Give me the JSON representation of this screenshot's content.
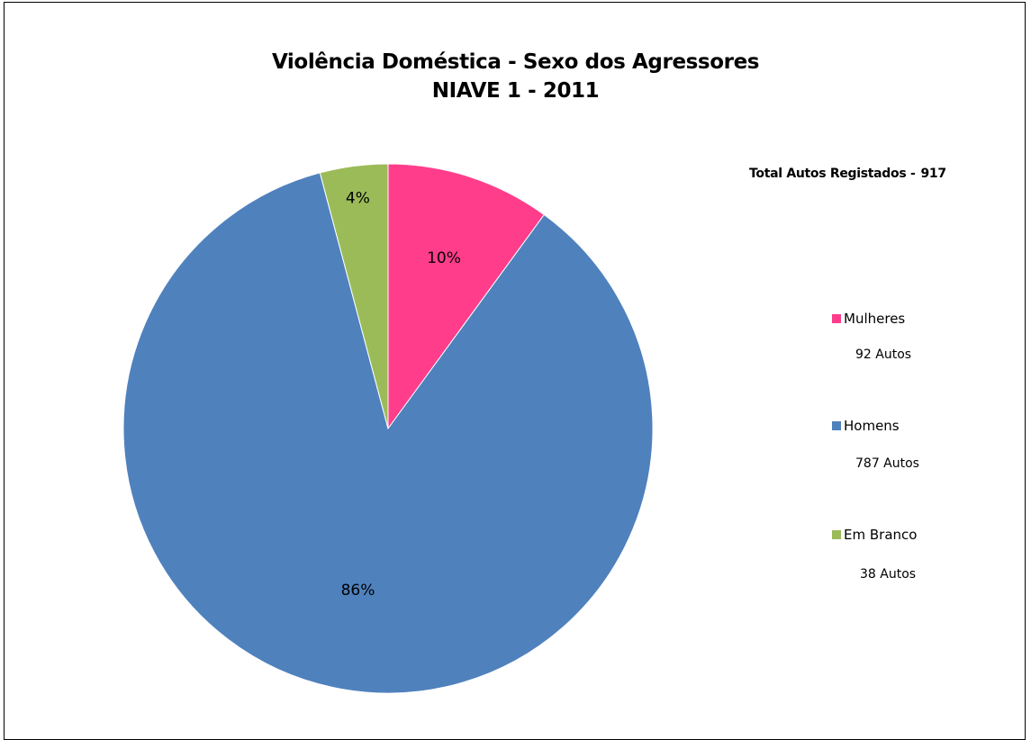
{
  "chart_data": {
    "type": "pie",
    "title": "Violência Doméstica  - Sexo dos Agressores",
    "subtitle": "NIAVE 1 - 2011",
    "total_label": "Total Autos Registados -",
    "total_value": "917",
    "slices": [
      {
        "name": "Mulheres",
        "value": 92,
        "percent_label": "10%",
        "count_label": "92 Autos",
        "color": "#FF3D8B"
      },
      {
        "name": "Homens",
        "value": 787,
        "percent_label": "86%",
        "count_label": "787 Autos",
        "color": "#4F81BD"
      },
      {
        "name": "Em Branco",
        "value": 38,
        "percent_label": "4%",
        "count_label": "38 Autos",
        "color": "#9BBB59"
      }
    ],
    "legend_position": "right"
  }
}
